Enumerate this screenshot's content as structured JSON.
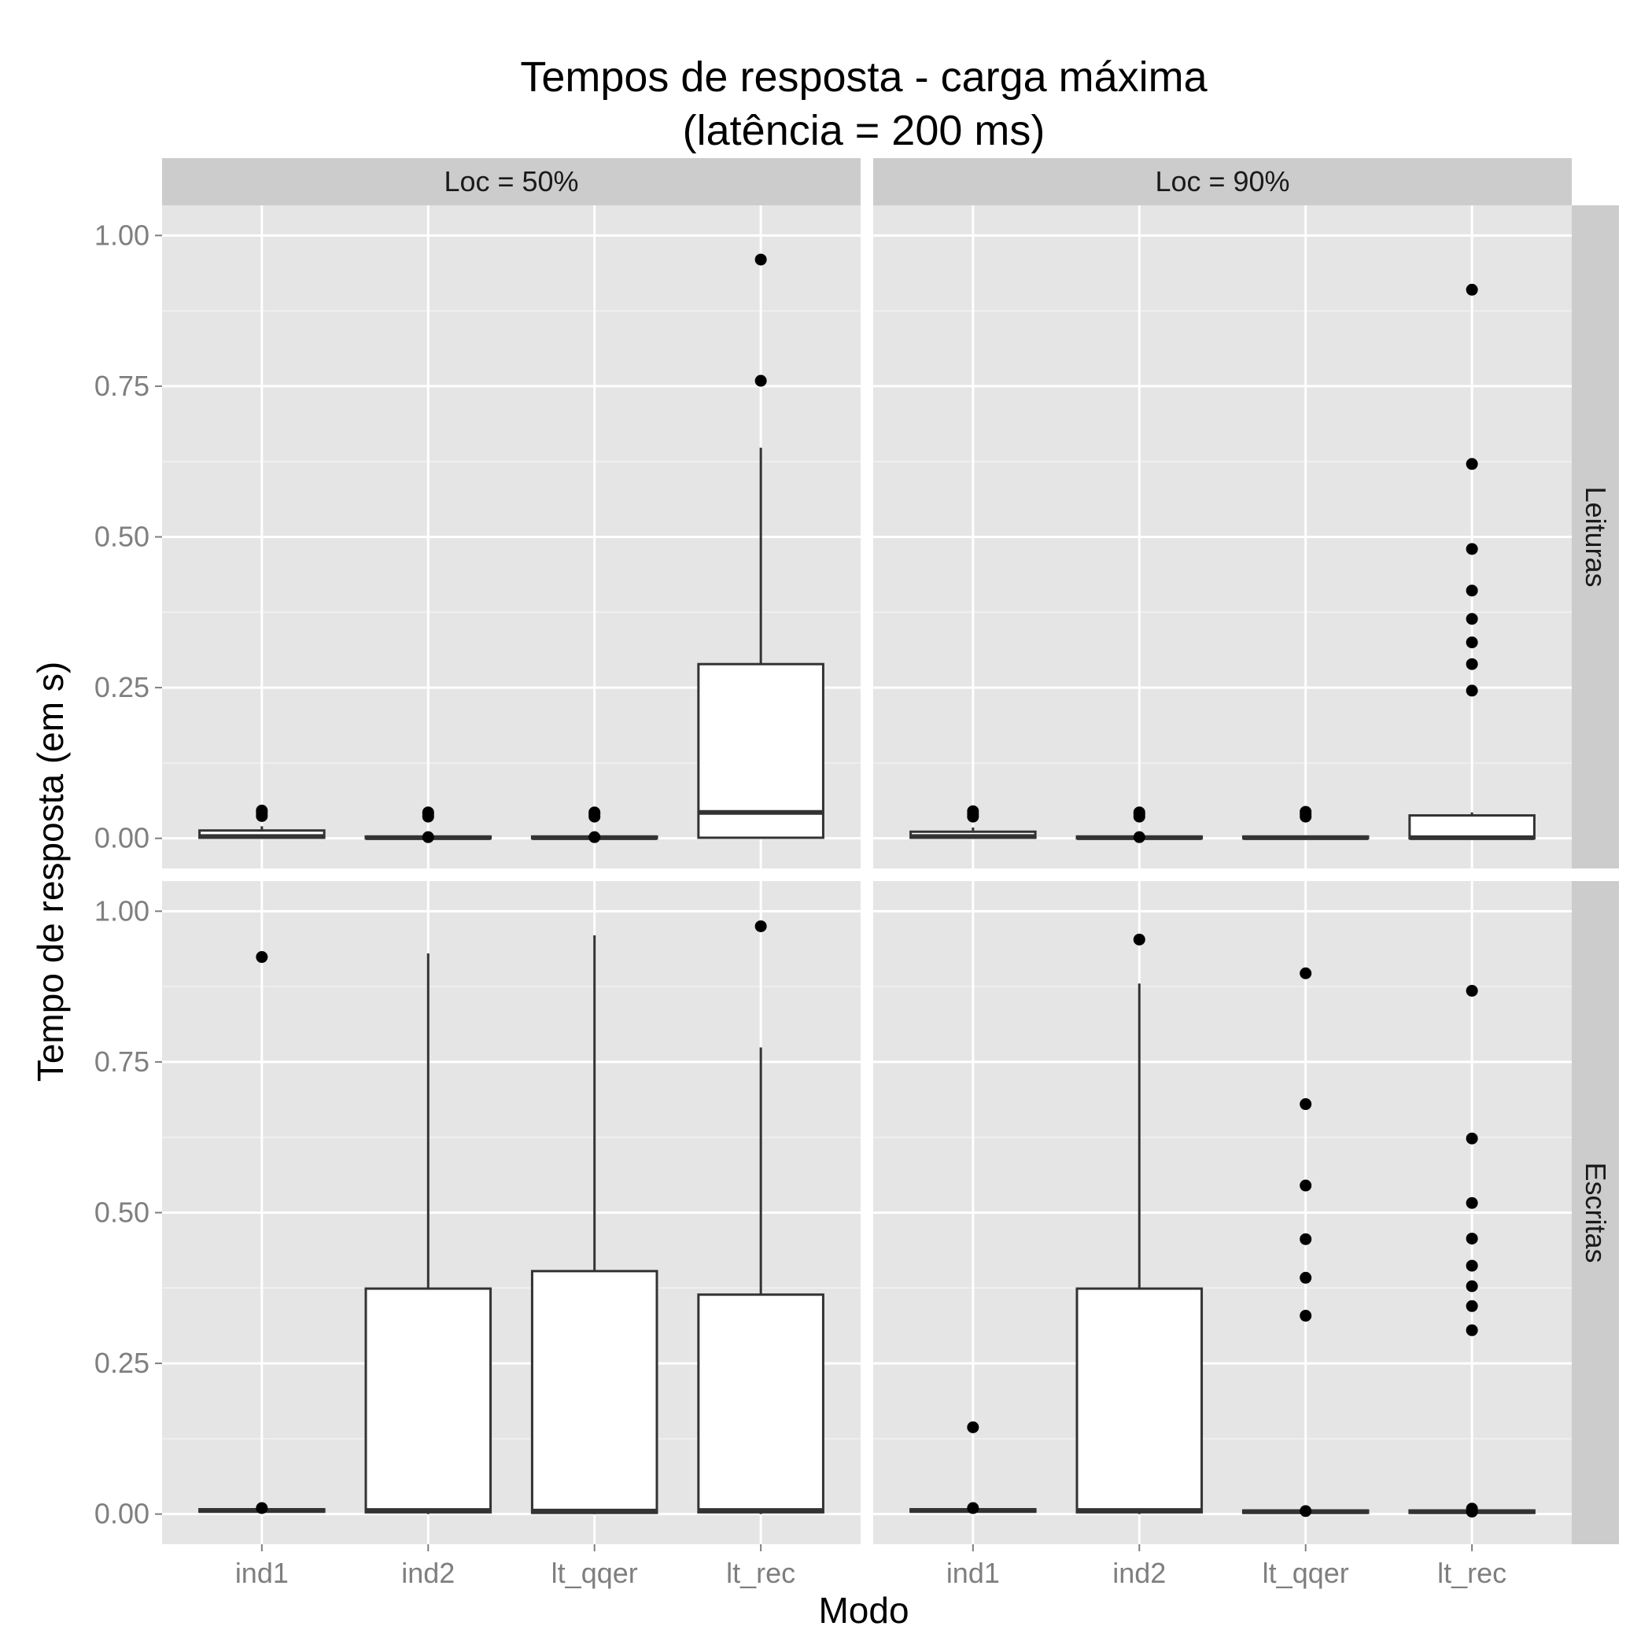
{
  "chart_data": {
    "type": "box",
    "title": [
      "Tempos de resposta - carga máxima",
      "(latência = 200 ms)"
    ],
    "xlabel": "Modo",
    "ylabel": "Tempo de resposta (em s)",
    "ylim": [
      -0.05,
      1.05
    ],
    "y_ticks": [
      "0.00",
      "0.25",
      "0.50",
      "0.75",
      "1.00"
    ],
    "y_tick_values": [
      0,
      0.25,
      0.5,
      0.75,
      1.0
    ],
    "categories": [
      "ind1",
      "ind2",
      "lt_qqer",
      "lt_rec"
    ],
    "col_facets": [
      "Loc = 50%",
      "Loc = 90%"
    ],
    "row_facets": [
      "Leituras",
      "Escritas"
    ],
    "grid": true,
    "panels": [
      {
        "col": 0,
        "row": 0,
        "boxes": [
          {
            "category": "ind1",
            "q1": 0.001,
            "median": 0.003,
            "q3": 0.013,
            "whisker_low": 0.0,
            "whisker_high": 0.02,
            "outliers": [
              0.037,
              0.042,
              0.046
            ]
          },
          {
            "category": "ind2",
            "q1": 0.0,
            "median": 0.001,
            "q3": 0.003,
            "whisker_low": 0.0,
            "whisker_high": 0.004,
            "outliers": [
              0.002,
              0.036,
              0.04,
              0.043
            ]
          },
          {
            "category": "lt_qqer",
            "q1": 0.0,
            "median": 0.001,
            "q3": 0.003,
            "whisker_low": 0.0,
            "whisker_high": 0.004,
            "outliers": [
              0.002,
              0.036,
              0.04,
              0.043
            ]
          },
          {
            "category": "lt_rec",
            "q1": 0.001,
            "median": 0.043,
            "q3": 0.289,
            "whisker_low": 0.0,
            "whisker_high": 0.648,
            "outliers": [
              0.759,
              0.96
            ]
          }
        ]
      },
      {
        "col": 1,
        "row": 0,
        "boxes": [
          {
            "category": "ind1",
            "q1": 0.001,
            "median": 0.003,
            "q3": 0.011,
            "whisker_low": 0.0,
            "whisker_high": 0.018,
            "outliers": [
              0.036,
              0.04,
              0.045
            ]
          },
          {
            "category": "ind2",
            "q1": 0.0,
            "median": 0.001,
            "q3": 0.003,
            "whisker_low": 0.0,
            "whisker_high": 0.004,
            "outliers": [
              0.002,
              0.036,
              0.04,
              0.043
            ]
          },
          {
            "category": "lt_qqer",
            "q1": 0.0,
            "median": 0.001,
            "q3": 0.003,
            "whisker_low": 0.0,
            "whisker_high": 0.004,
            "outliers": [
              0.036,
              0.04,
              0.044
            ]
          },
          {
            "category": "lt_rec",
            "q1": 0.0,
            "median": 0.001,
            "q3": 0.038,
            "whisker_low": 0.0,
            "whisker_high": 0.043,
            "outliers": [
              0.245,
              0.289,
              0.325,
              0.364,
              0.411,
              0.48,
              0.621,
              0.91
            ]
          }
        ]
      },
      {
        "col": 0,
        "row": 1,
        "boxes": [
          {
            "category": "ind1",
            "q1": 0.004,
            "median": 0.006,
            "q3": 0.008,
            "whisker_low": 0.003,
            "whisker_high": 0.01,
            "outliers": [
              0.01,
              0.924
            ]
          },
          {
            "category": "ind2",
            "q1": 0.003,
            "median": 0.006,
            "q3": 0.374,
            "whisker_low": 0.0,
            "whisker_high": 0.93,
            "outliers": []
          },
          {
            "category": "lt_qqer",
            "q1": 0.002,
            "median": 0.005,
            "q3": 0.403,
            "whisker_low": 0.0,
            "whisker_high": 0.96,
            "outliers": []
          },
          {
            "category": "lt_rec",
            "q1": 0.003,
            "median": 0.006,
            "q3": 0.364,
            "whisker_low": 0.0,
            "whisker_high": 0.774,
            "outliers": [
              0.975
            ]
          }
        ]
      },
      {
        "col": 1,
        "row": 1,
        "boxes": [
          {
            "category": "ind1",
            "q1": 0.004,
            "median": 0.006,
            "q3": 0.008,
            "whisker_low": 0.003,
            "whisker_high": 0.01,
            "outliers": [
              0.01,
              0.144
            ]
          },
          {
            "category": "ind2",
            "q1": 0.003,
            "median": 0.006,
            "q3": 0.374,
            "whisker_low": 0.0,
            "whisker_high": 0.88,
            "outliers": [
              0.953
            ]
          },
          {
            "category": "lt_qqer",
            "q1": 0.002,
            "median": 0.004,
            "q3": 0.006,
            "whisker_low": 0.001,
            "whisker_high": 0.007,
            "outliers": [
              0.005,
              0.329,
              0.392,
              0.456,
              0.545,
              0.68,
              0.897
            ]
          },
          {
            "category": "lt_rec",
            "q1": 0.002,
            "median": 0.004,
            "q3": 0.006,
            "whisker_low": 0.001,
            "whisker_high": 0.007,
            "outliers": [
              0.004,
              0.009,
              0.305,
              0.345,
              0.378,
              0.412,
              0.457,
              0.516,
              0.623,
              0.868
            ]
          }
        ]
      }
    ]
  }
}
